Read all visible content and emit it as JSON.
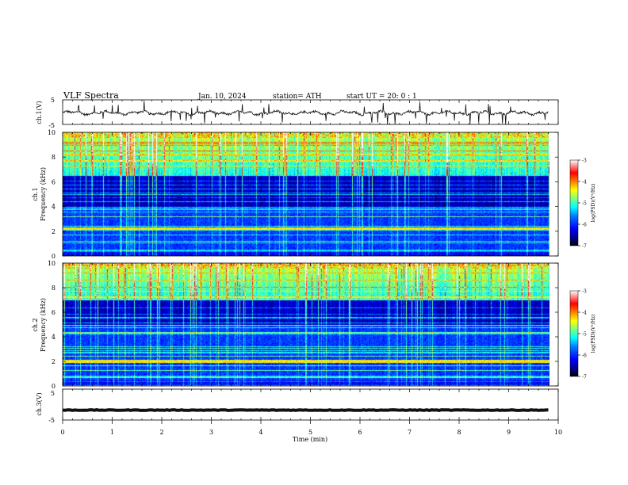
{
  "header": {
    "title": "VLF  Spectra",
    "date": "Jan.  10,  2024",
    "station": "station= ATH",
    "start_ut": "start  UT  =    20: 0   : 1"
  },
  "colors": {
    "waveform": "#111111",
    "colorbar_stops": [
      "#00007f",
      "#0000ff",
      "#007fff",
      "#00ffff",
      "#7fff7f",
      "#ffff00",
      "#ff7f00",
      "#ff0000",
      "#ffffff"
    ]
  },
  "chart_data": [
    {
      "type": "line",
      "panel": "ch1-waveform",
      "ylabel": "ch.1(V)",
      "ylim": [
        -5,
        5
      ],
      "y_ticks": [
        "5",
        "-5"
      ],
      "x_range_min": [
        0,
        10
      ],
      "data_extent_min": [
        0,
        9.8
      ],
      "series": [
        {
          "baseline_v": -0.3,
          "typical_amplitude_v": 1.0,
          "peak_spike_v": 4.5
        }
      ]
    },
    {
      "type": "heatmap",
      "panel": "ch1-spectrogram",
      "ylabel_top": "ch.1",
      "ylabel": "Frequency  (kHz)",
      "ylim": [
        0,
        10
      ],
      "y_ticks": [
        "0",
        "2",
        "4",
        "6",
        "8",
        "10"
      ],
      "x_range_min": [
        0,
        10
      ],
      "data_extent_min": [
        0,
        9.8
      ],
      "colorbar": {
        "label": "log(PSD)(V²/Hz)",
        "range": [
          -7,
          -3
        ],
        "ticks": [
          "-3",
          "-4",
          "-5",
          "-6",
          "-7"
        ]
      },
      "features": {
        "strong_band_khz": 2.2,
        "quiet_band_khz": [
          4,
          6.5
        ],
        "sferic_activity_khz": [
          6.5,
          10
        ]
      }
    },
    {
      "type": "heatmap",
      "panel": "ch2-spectrogram",
      "ylabel_top": "ch.2",
      "ylabel": "Frequency  (kHz)",
      "ylim": [
        0,
        10
      ],
      "y_ticks": [
        "0",
        "2",
        "4",
        "6",
        "8",
        "10"
      ],
      "x_range_min": [
        0,
        10
      ],
      "data_extent_min": [
        0,
        9.8
      ],
      "colorbar": {
        "label": "log(PSD)(V²/Hz)",
        "range": [
          -7,
          -3
        ],
        "ticks": [
          "-3",
          "-4",
          "-5",
          "-6",
          "-7"
        ]
      },
      "features": {
        "strong_band_khz": 2.0,
        "quiet_band_khz": [
          5,
          7
        ],
        "sferic_activity_khz": [
          7,
          10
        ]
      }
    },
    {
      "type": "line",
      "panel": "ch3-waveform",
      "ylabel": "ch.3(V)",
      "ylim": [
        -5,
        5
      ],
      "y_ticks": [
        "5",
        "-5"
      ],
      "x_range_min": [
        0,
        10
      ],
      "data_extent_min": [
        0,
        9.8
      ],
      "series": [
        {
          "baseline_v": -1.8,
          "typical_amplitude_v": 0.2
        }
      ]
    }
  ],
  "x_axis": {
    "label": "Time  (min)",
    "ticks": [
      "0",
      "1",
      "2",
      "3",
      "4",
      "5",
      "6",
      "7",
      "8",
      "9",
      "10"
    ]
  }
}
